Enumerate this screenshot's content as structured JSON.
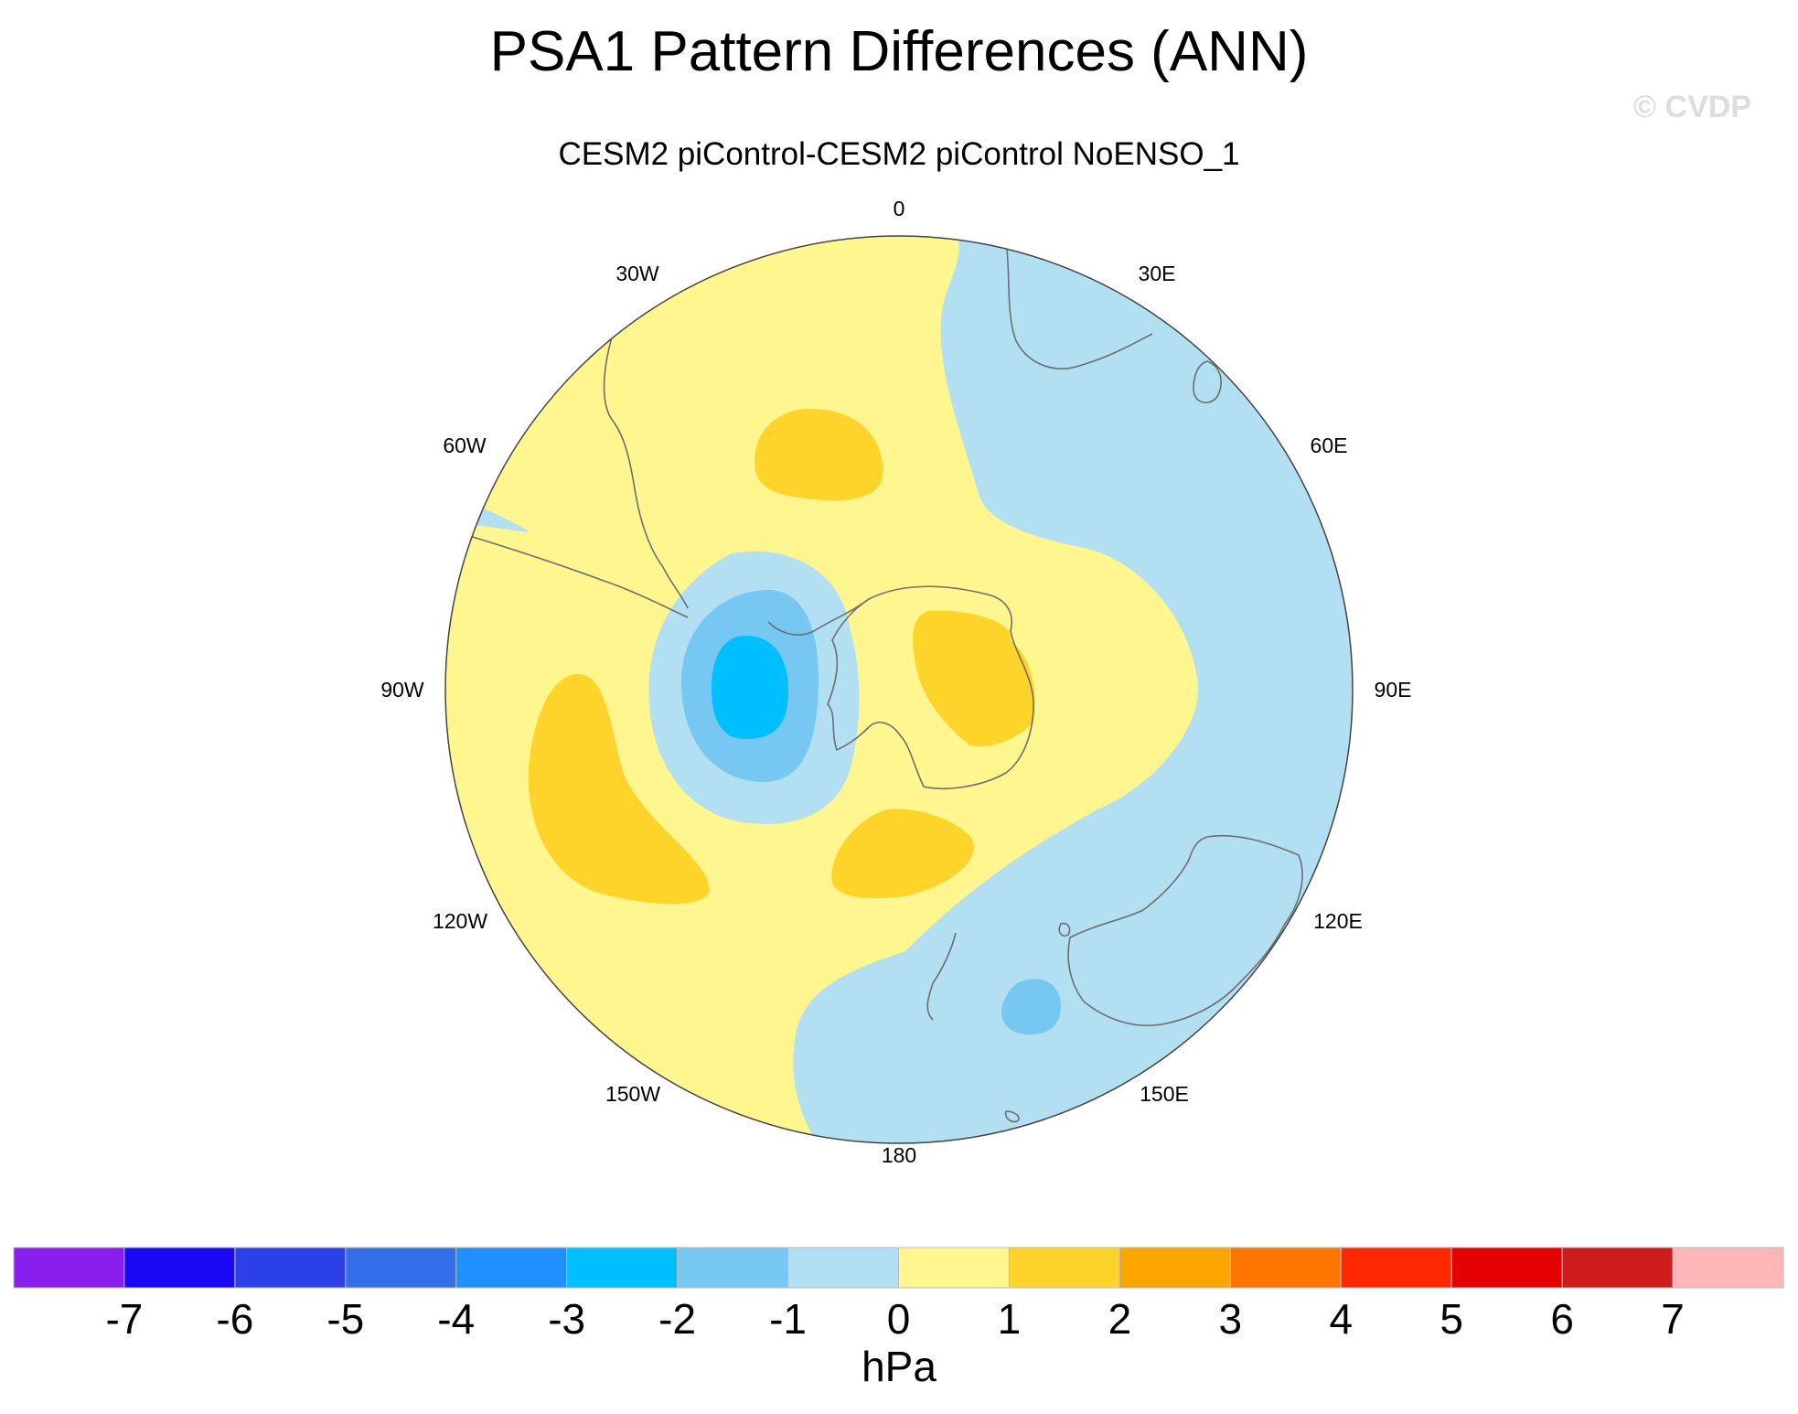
{
  "title": "PSA1 Pattern Differences (ANN)",
  "subtitle": "CESM2 piControl-CESM2 piControl NoENSO_1",
  "watermark": "© CVDP",
  "longitude_labels": [
    "0",
    "30E",
    "60E",
    "90E",
    "120E",
    "150E",
    "180",
    "150W",
    "120W",
    "90W",
    "60W",
    "30W"
  ],
  "colorbar": {
    "unit": "hPa",
    "tick_labels": [
      "-7",
      "-6",
      "-5",
      "-4",
      "-3",
      "-2",
      "-1",
      "0",
      "1",
      "2",
      "3",
      "4",
      "5",
      "6",
      "7"
    ],
    "colors": [
      "#8a1eef",
      "#1a08f7",
      "#2b40e8",
      "#336de8",
      "#1e90ff",
      "#00bfff",
      "#76c8f2",
      "#b2dff2",
      "#fff68f",
      "#fed42b",
      "#fca500",
      "#fe7600",
      "#ff2800",
      "#e40000",
      "#d01b1b",
      "#ffb6b6"
    ]
  },
  "map": {
    "projection": "polar stereographic, south pole centered",
    "background_anomaly_colors": {
      "positive_0_1": "#fff68f",
      "negative_0_1": "#b2dff2"
    },
    "features": [
      {
        "name": "negative-core-west-antarctic-peninsula",
        "range_hpa": "-3 to -2",
        "color": "#00bfff"
      },
      {
        "name": "negative-ring",
        "range_hpa": "-2 to -1",
        "color": "#76c8f2"
      },
      {
        "name": "positive-centers",
        "range_hpa": "1 to 2",
        "color": "#fed42b"
      },
      {
        "name": "negative-tasman",
        "range_hpa": "-2 to -1",
        "color": "#76c8f2"
      }
    ]
  }
}
